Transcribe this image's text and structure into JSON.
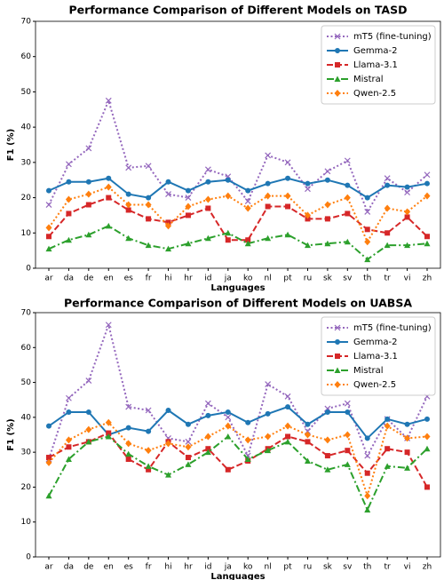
{
  "chart_data": [
    {
      "type": "line",
      "title": "Performance Comparison of Different Models on TASD",
      "x_label": "Languages",
      "y_label": "F1 (%)",
      "categories": [
        "ar",
        "da",
        "de",
        "en",
        "es",
        "fr",
        "hi",
        "hr",
        "id",
        "ja",
        "ko",
        "nl",
        "pt",
        "ru",
        "sk",
        "sv",
        "th",
        "tr",
        "vi",
        "zh"
      ],
      "ylim": [
        0,
        70
      ],
      "yticks": [
        0,
        10,
        20,
        30,
        40,
        50,
        60,
        70
      ],
      "legend": "upper right",
      "series": [
        {
          "name": "mT5 (fine-tuning)",
          "color": "#9467bd",
          "linestyle": "dotted",
          "marker": "x",
          "values": [
            18,
            29.5,
            34,
            47.5,
            28.5,
            29,
            21,
            20,
            28,
            26,
            19,
            32,
            30,
            22.5,
            27.5,
            30.5,
            16,
            25.5,
            21.5,
            26.5
          ]
        },
        {
          "name": "Gemma-2",
          "color": "#1f77b4",
          "linestyle": "solid",
          "marker": "circle",
          "values": [
            22,
            24.5,
            24.5,
            25.5,
            21,
            20,
            24.5,
            22,
            24.5,
            25,
            22,
            24,
            25.5,
            24,
            25,
            23.5,
            20,
            23.5,
            23,
            24
          ]
        },
        {
          "name": "Llama-3.1",
          "color": "#d62728",
          "linestyle": "dashed",
          "marker": "square",
          "values": [
            9,
            15.5,
            18,
            20,
            16.5,
            14,
            13,
            15,
            17,
            8,
            8,
            17.5,
            17.5,
            14,
            14,
            15.5,
            11,
            10,
            14.5,
            9
          ]
        },
        {
          "name": "Mistral",
          "color": "#2ca02c",
          "linestyle": "dashdot",
          "marker": "triangle",
          "values": [
            5.5,
            8,
            9.5,
            12,
            8.5,
            6.5,
            5.5,
            7,
            8.5,
            10,
            7,
            8.5,
            9.5,
            6.5,
            7,
            7.5,
            2.5,
            6.5,
            6.5,
            7
          ]
        },
        {
          "name": "Qwen-2.5",
          "color": "#ff7f0e",
          "linestyle": "dotted",
          "marker": "diamond",
          "values": [
            11.5,
            19.5,
            21,
            23,
            18,
            18,
            12,
            17.5,
            19.5,
            20.5,
            17,
            20.5,
            20.5,
            15,
            18,
            20,
            7.5,
            17,
            16,
            20.5
          ]
        }
      ]
    },
    {
      "type": "line",
      "title": "Performance Comparison of Different Models on UABSA",
      "x_label": "Languages",
      "y_label": "F1 (%)",
      "categories": [
        "ar",
        "da",
        "de",
        "en",
        "es",
        "fr",
        "hi",
        "hr",
        "id",
        "ja",
        "ko",
        "nl",
        "pt",
        "ru",
        "sk",
        "sv",
        "th",
        "tr",
        "vi",
        "zh"
      ],
      "ylim": [
        0,
        70
      ],
      "yticks": [
        0,
        10,
        20,
        30,
        40,
        50,
        60,
        70
      ],
      "legend": "upper right",
      "series": [
        {
          "name": "mT5 (fine-tuning)",
          "color": "#9467bd",
          "linestyle": "dotted",
          "marker": "x",
          "values": [
            28,
            45.5,
            50.5,
            66.5,
            43,
            42,
            34,
            33,
            44,
            40,
            29,
            49.5,
            46,
            36,
            42.5,
            44,
            29,
            39.5,
            34,
            46
          ]
        },
        {
          "name": "Gemma-2",
          "color": "#1f77b4",
          "linestyle": "solid",
          "marker": "circle",
          "values": [
            37.5,
            41.5,
            41.5,
            35,
            37,
            36,
            42,
            38,
            40.5,
            41.5,
            38.5,
            41,
            43,
            38,
            41.5,
            41.5,
            34,
            39.5,
            38,
            39.5
          ]
        },
        {
          "name": "Llama-3.1",
          "color": "#d62728",
          "linestyle": "dashed",
          "marker": "square",
          "values": [
            28.5,
            31.5,
            33,
            35.5,
            28,
            25,
            33,
            28.5,
            31,
            25,
            27.5,
            31,
            34.5,
            33,
            29,
            30.5,
            24,
            31,
            30,
            20
          ]
        },
        {
          "name": "Mistral",
          "color": "#2ca02c",
          "linestyle": "dashdot",
          "marker": "triangle",
          "values": [
            17.5,
            28,
            33,
            34.5,
            29.5,
            26,
            23.5,
            26.5,
            30,
            34.5,
            28,
            30.5,
            33,
            27.5,
            25,
            26.5,
            13.5,
            26,
            25.5,
            31
          ]
        },
        {
          "name": "Qwen-2.5",
          "color": "#ff7f0e",
          "linestyle": "dotted",
          "marker": "diamond",
          "values": [
            27,
            33.5,
            36.5,
            38.5,
            32.5,
            30.5,
            32.5,
            31.5,
            34.5,
            37.5,
            33.5,
            34.5,
            37.5,
            35,
            33.5,
            35,
            17.5,
            37.5,
            34,
            34.5
          ]
        }
      ]
    }
  ]
}
